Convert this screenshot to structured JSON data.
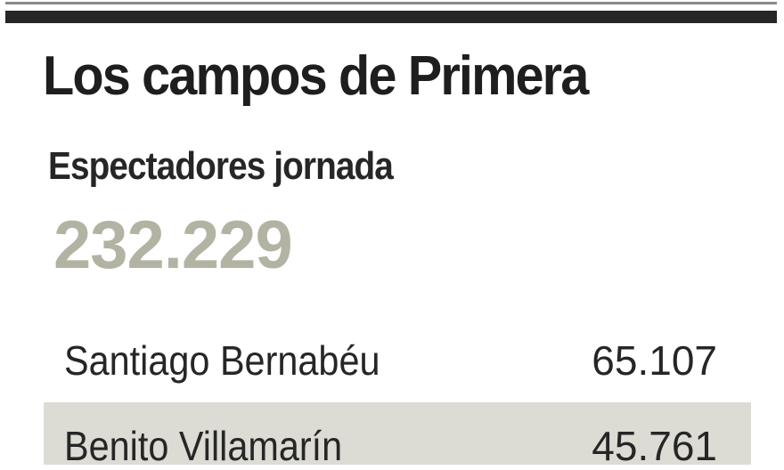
{
  "title": "Los campos de Primera",
  "subtitle": "Espectadores jornada",
  "total": "232.229",
  "colors": {
    "total": "#b3b3a3",
    "row_alt": "#dcdcd4",
    "rule": "#262626"
  },
  "chart_data": {
    "type": "table",
    "title": "Los campos de Primera",
    "subtitle": "Espectadores jornada",
    "total": 232229,
    "rows": [
      {
        "stadium": "Santiago Bernabéu",
        "spectators": "65.107"
      },
      {
        "stadium": "Benito Villamarín",
        "spectators": "45.761"
      }
    ]
  }
}
